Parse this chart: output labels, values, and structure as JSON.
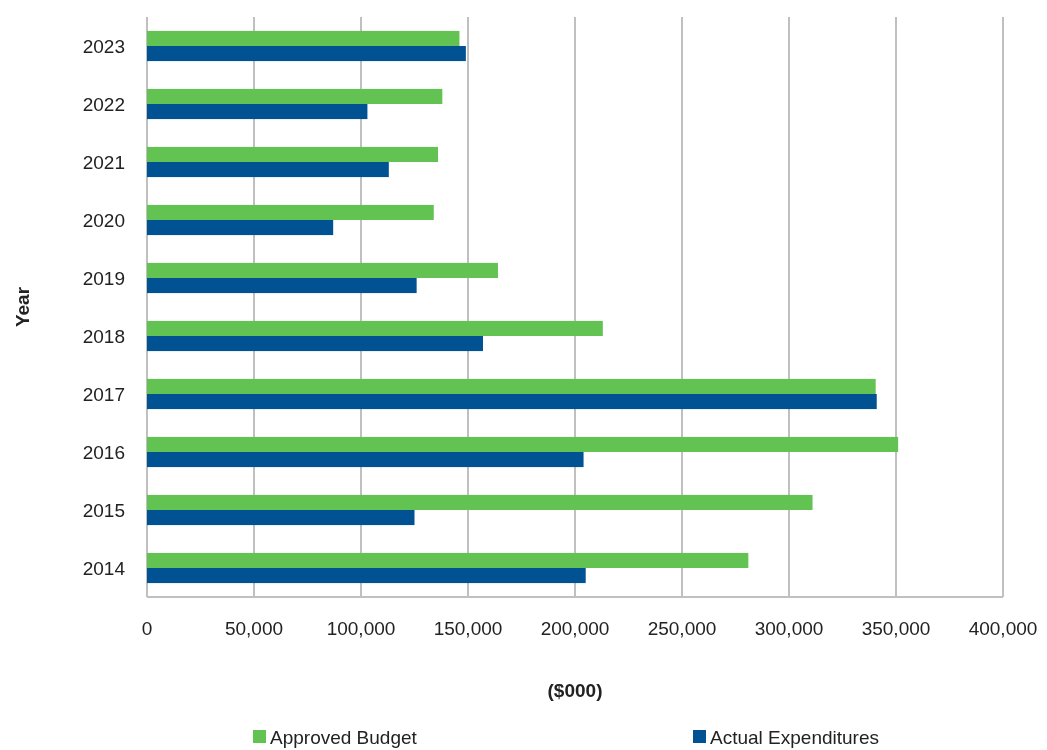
{
  "chart_data": {
    "type": "bar",
    "orientation": "horizontal",
    "xlabel": "($000)",
    "ylabel": "Year",
    "categories": [
      "2023",
      "2022",
      "2021",
      "2020",
      "2019",
      "2018",
      "2017",
      "2016",
      "2015",
      "2014"
    ],
    "series": [
      {
        "name": "Approved Budget",
        "color": "#62c353",
        "values": [
          146000,
          138000,
          136000,
          134000,
          164000,
          213000,
          340500,
          351000,
          311000,
          281000
        ]
      },
      {
        "name": "Actual Expenditures",
        "color": "#005293",
        "values": [
          149000,
          103000,
          113000,
          87000,
          126000,
          157000,
          341000,
          204000,
          125000,
          205000
        ]
      }
    ],
    "xlim": [
      0,
      400000
    ],
    "xticks": [
      {
        "value": 0,
        "label": "0"
      },
      {
        "value": 50000,
        "label": "50,000"
      },
      {
        "value": 100000,
        "label": "100,000"
      },
      {
        "value": 150000,
        "label": "150,000"
      },
      {
        "value": 200000,
        "label": "200,000"
      },
      {
        "value": 250000,
        "label": "250,000"
      },
      {
        "value": 300000,
        "label": "300,000"
      },
      {
        "value": 350000,
        "label": "350,000"
      },
      {
        "value": 400000,
        "label": "400,000"
      }
    ],
    "grid": "x",
    "legend": "bottom"
  }
}
